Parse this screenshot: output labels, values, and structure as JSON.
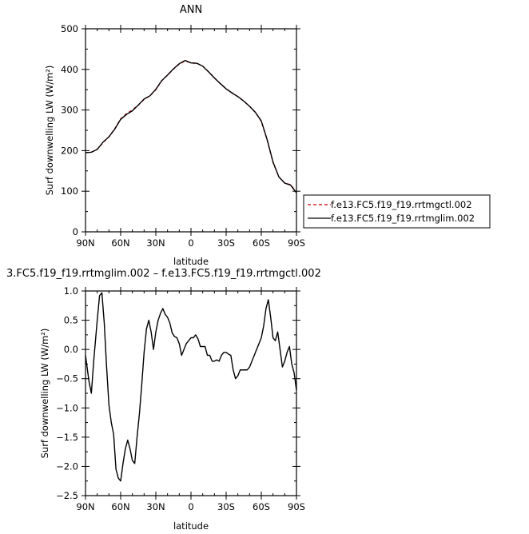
{
  "chart_data": [
    {
      "type": "line",
      "title": "ANN",
      "xlabel": "latitude",
      "ylabel": "Surf downwelling LW (W/m²)",
      "xlim": [
        90,
        -90
      ],
      "ylim": [
        0,
        500
      ],
      "x_tick_values": [
        90,
        60,
        30,
        0,
        -30,
        -60,
        -90
      ],
      "x_tick_labels": [
        "90N",
        "60N",
        "30N",
        "0",
        "30S",
        "60S",
        "90S"
      ],
      "y_tick_values": [
        0,
        100,
        200,
        300,
        400,
        500
      ],
      "y_tick_labels": [
        "0",
        "100",
        "200",
        "300",
        "400",
        "500"
      ],
      "grid": false,
      "legend_position": "right",
      "series": [
        {
          "name": "f.e13.FC5.f19_f19.rrtmgctl.002",
          "color": "#cc0000",
          "dash": "dashed",
          "x": [
            90,
            85,
            80,
            75,
            70,
            65,
            60,
            55,
            50,
            45,
            40,
            35,
            30,
            25,
            20,
            15,
            10,
            5,
            0,
            -5,
            -10,
            -15,
            -20,
            -25,
            -30,
            -35,
            -40,
            -45,
            -50,
            -55,
            -60,
            -65,
            -70,
            -75,
            -80,
            -85,
            -90
          ],
          "y": [
            195,
            196,
            203,
            220,
            234,
            254,
            278,
            291,
            300,
            312,
            326,
            335,
            350,
            372,
            386,
            401,
            413,
            421,
            416,
            415,
            408,
            394,
            379,
            365,
            352,
            342,
            333,
            322,
            309,
            294,
            272,
            226,
            171,
            135,
            120,
            116,
            97
          ]
        },
        {
          "name": "f.e13.FC5.f19_f19.rrtmglim.002",
          "color": "#000000",
          "dash": "solid",
          "x": [
            90,
            85,
            80,
            75,
            70,
            65,
            60,
            55,
            50,
            45,
            40,
            35,
            30,
            25,
            20,
            15,
            10,
            5,
            0,
            -5,
            -10,
            -15,
            -20,
            -25,
            -30,
            -35,
            -40,
            -45,
            -50,
            -55,
            -60,
            -65,
            -70,
            -75,
            -80,
            -85,
            -90
          ],
          "y": [
            195,
            196,
            203,
            221,
            234,
            253,
            277,
            289,
            298,
            312,
            327,
            335,
            351,
            372,
            386,
            401,
            414,
            422,
            416,
            415,
            408,
            394,
            379,
            365,
            352,
            342,
            333,
            322,
            309,
            294,
            273,
            227,
            172,
            135,
            120,
            115,
            96
          ]
        }
      ]
    },
    {
      "type": "line",
      "title": "3.FC5.f19_f19.rrtmglim.002 – f.e13.FC5.f19_f19.rrtmgctl.002",
      "xlabel": "latitude",
      "ylabel": "Surf downwelling LW (W/m²)",
      "xlim": [
        90,
        -90
      ],
      "ylim": [
        -2.5,
        1.0
      ],
      "x_tick_values": [
        90,
        60,
        30,
        0,
        -30,
        -60,
        -90
      ],
      "x_tick_labels": [
        "90N",
        "60N",
        "30N",
        "0",
        "30S",
        "60S",
        "90S"
      ],
      "y_tick_values": [
        -2.5,
        -2.0,
        -1.5,
        -1.0,
        -0.5,
        0.0,
        0.5,
        1.0
      ],
      "y_tick_labels": [
        "−2.5",
        "−2.0",
        "−1.5",
        "−1.0",
        "−0.5",
        "0.0",
        "0.5",
        "1.0"
      ],
      "grid": false,
      "series": [
        {
          "color": "#000000",
          "x": [
            90,
            87,
            85,
            83,
            80,
            78,
            76,
            74,
            72,
            70,
            68,
            66,
            64,
            62,
            60,
            58,
            56,
            54,
            52,
            50,
            48,
            46,
            44,
            42,
            40,
            38,
            36,
            34,
            32,
            30,
            28,
            26,
            24,
            22,
            20,
            18,
            16,
            14,
            12,
            10,
            8,
            6,
            4,
            2,
            0,
            -2,
            -4,
            -6,
            -8,
            -10,
            -12,
            -14,
            -16,
            -18,
            -20,
            -22,
            -24,
            -26,
            -28,
            -30,
            -32,
            -34,
            -36,
            -38,
            -40,
            -42,
            -44,
            -46,
            -48,
            -50,
            -52,
            -54,
            -56,
            -58,
            -60,
            -62,
            -64,
            -66,
            -68,
            -70,
            -72,
            -74,
            -76,
            -78,
            -80,
            -82,
            -84,
            -86,
            -88,
            -90
          ],
          "y": [
            -0.1,
            -0.55,
            -0.75,
            -0.2,
            0.5,
            0.92,
            0.97,
            0.45,
            -0.3,
            -0.95,
            -1.25,
            -1.45,
            -2.05,
            -2.2,
            -2.25,
            -1.95,
            -1.7,
            -1.55,
            -1.7,
            -1.9,
            -1.95,
            -1.5,
            -1.1,
            -0.6,
            -0.05,
            0.35,
            0.5,
            0.3,
            0.0,
            0.3,
            0.5,
            0.62,
            0.7,
            0.6,
            0.55,
            0.45,
            0.28,
            0.22,
            0.2,
            0.1,
            -0.1,
            0.0,
            0.1,
            0.15,
            0.2,
            0.2,
            0.25,
            0.18,
            0.05,
            0.05,
            0.05,
            -0.1,
            -0.1,
            -0.2,
            -0.2,
            -0.18,
            -0.2,
            -0.1,
            -0.05,
            -0.05,
            -0.08,
            -0.1,
            -0.35,
            -0.5,
            -0.45,
            -0.35,
            -0.35,
            -0.35,
            -0.35,
            -0.3,
            -0.2,
            -0.1,
            0.0,
            0.1,
            0.2,
            0.4,
            0.7,
            0.85,
            0.55,
            0.2,
            0.15,
            0.3,
            0.0,
            -0.3,
            -0.2,
            -0.05,
            0.05,
            -0.25,
            -0.4,
            -0.7
          ]
        }
      ]
    }
  ]
}
